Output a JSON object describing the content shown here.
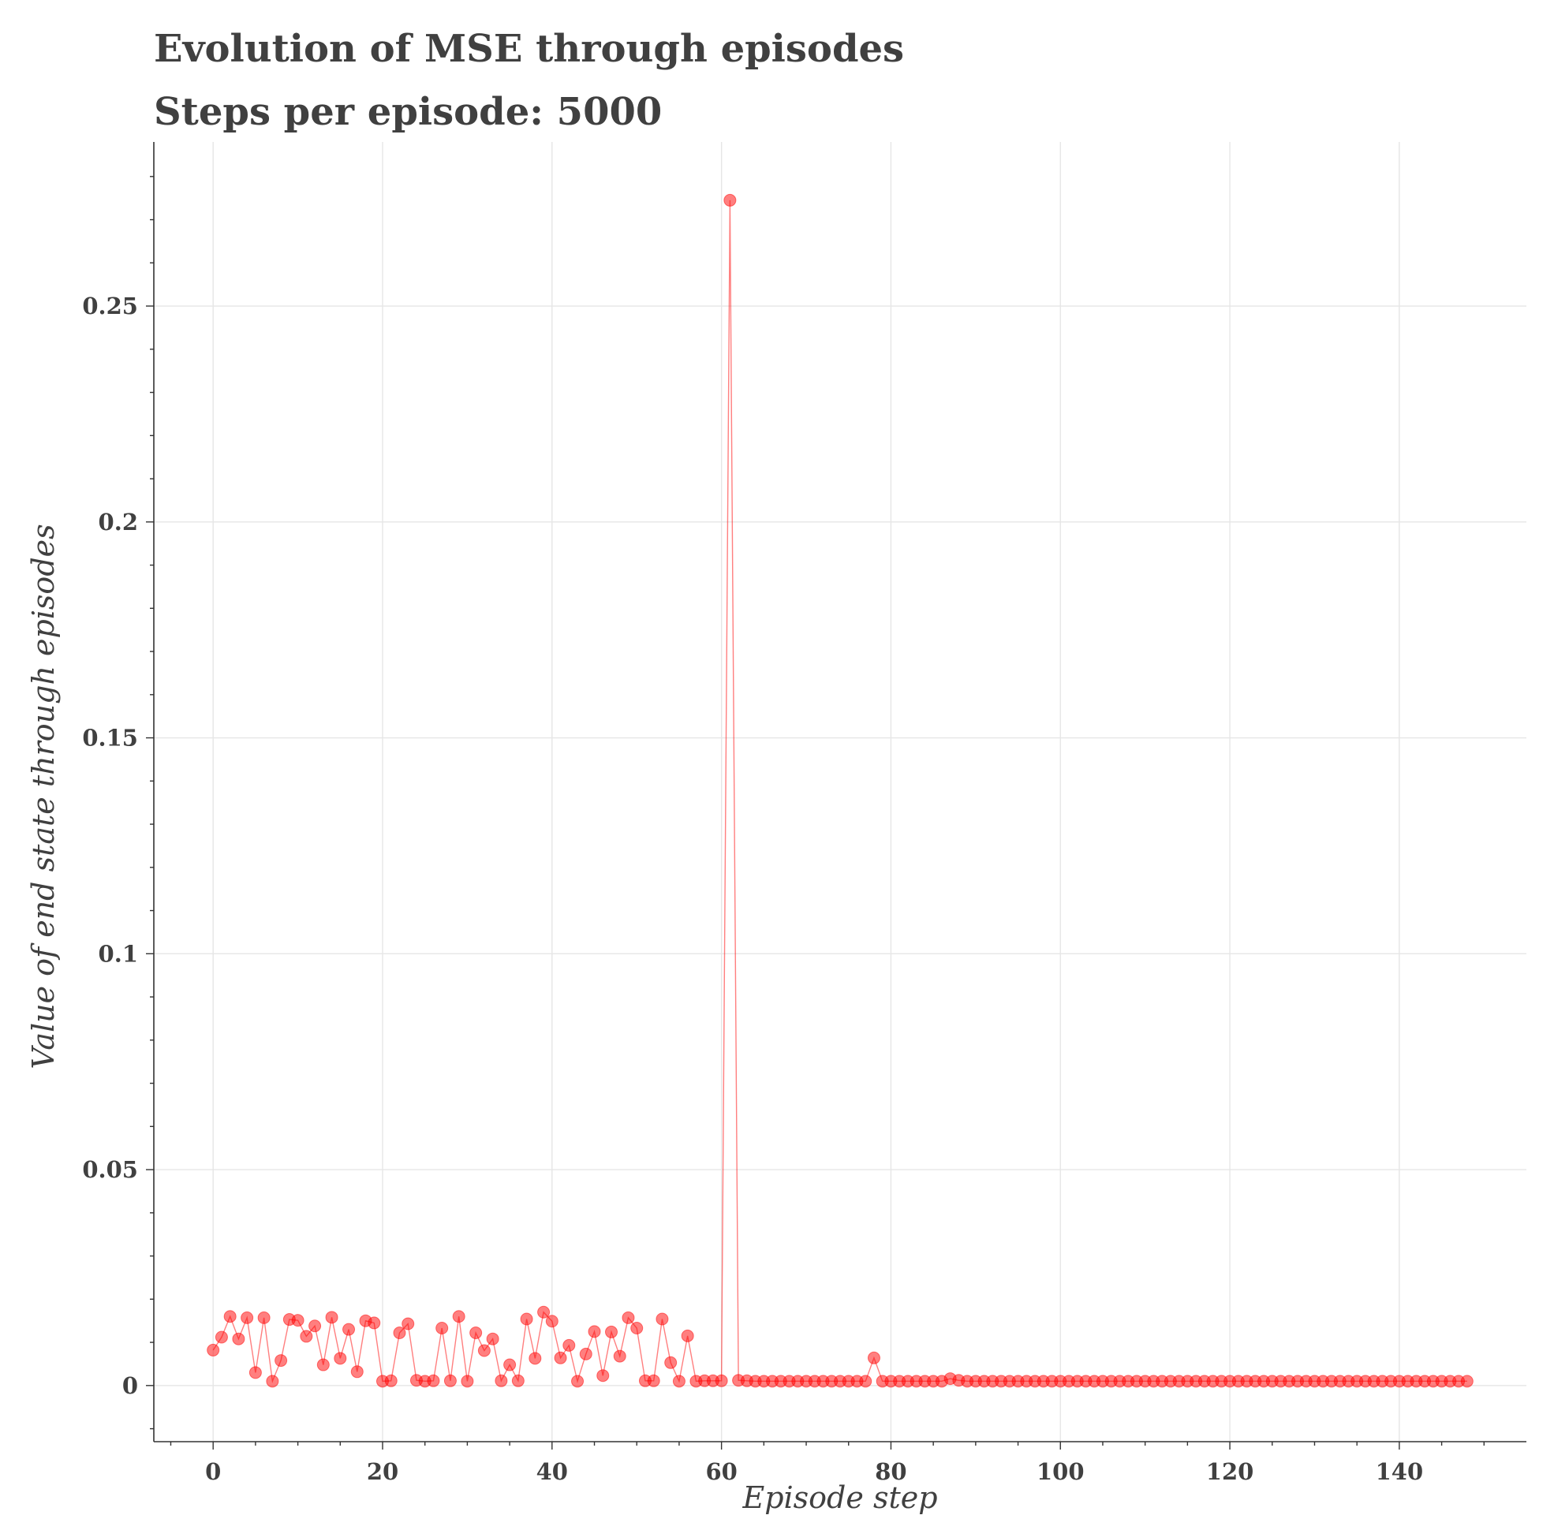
{
  "chart_data": {
    "type": "line",
    "title": "Evolution of MSE through episodes",
    "subtitle": "Steps per episode: 5000",
    "xlabel": "Episode step",
    "ylabel": "Value of end state through episodes",
    "xlim": [
      -7,
      155
    ],
    "ylim": [
      -0.013,
      0.288
    ],
    "xticks": [
      0,
      20,
      40,
      60,
      80,
      100,
      120,
      140
    ],
    "xtick_labels": [
      "0",
      "20",
      "40",
      "60",
      "80",
      "100",
      "120",
      "140"
    ],
    "yticks": [
      0,
      0.05,
      0.1,
      0.15,
      0.2,
      0.25
    ],
    "ytick_labels": [
      "0",
      "0.05",
      "0.1",
      "0.15",
      "0.2",
      "0.25"
    ],
    "grid": true,
    "series": [
      {
        "color": "#ff0000",
        "marker": "circle",
        "alpha": 0.5,
        "values": [
          0.0082,
          0.0112,
          0.016,
          0.0108,
          0.0157,
          0.003,
          0.0157,
          0.001,
          0.0058,
          0.0153,
          0.0151,
          0.0114,
          0.0138,
          0.0048,
          0.0158,
          0.0063,
          0.013,
          0.0032,
          0.015,
          0.0145,
          0.001,
          0.0011,
          0.0122,
          0.0143,
          0.0012,
          0.001,
          0.0011,
          0.0133,
          0.0011,
          0.016,
          0.001,
          0.0122,
          0.0081,
          0.0108,
          0.0011,
          0.0048,
          0.0011,
          0.0154,
          0.0063,
          0.017,
          0.0149,
          0.0064,
          0.0093,
          0.001,
          0.0073,
          0.0125,
          0.0023,
          0.0124,
          0.0068,
          0.0157,
          0.0133,
          0.0011,
          0.0011,
          0.0154,
          0.0053,
          0.001,
          0.0115,
          0.001,
          0.0011,
          0.0011,
          0.0011,
          0.2745,
          0.0012,
          0.0011,
          0.001,
          0.001,
          0.001,
          0.001,
          0.001,
          0.001,
          0.001,
          0.001,
          0.001,
          0.001,
          0.001,
          0.001,
          0.001,
          0.001,
          0.0064,
          0.001,
          0.001,
          0.001,
          0.001,
          0.001,
          0.001,
          0.001,
          0.001,
          0.0016,
          0.0012,
          0.001,
          0.001,
          0.001,
          0.001,
          0.001,
          0.001,
          0.001,
          0.001,
          0.001,
          0.001,
          0.001,
          0.001,
          0.001,
          0.001,
          0.001,
          0.001,
          0.001,
          0.001,
          0.001,
          0.001,
          0.001,
          0.001,
          0.001,
          0.001,
          0.001,
          0.001,
          0.001,
          0.001,
          0.001,
          0.001,
          0.001,
          0.001,
          0.001,
          0.001,
          0.001,
          0.001,
          0.001,
          0.001,
          0.001,
          0.001,
          0.001,
          0.001,
          0.001,
          0.001,
          0.001,
          0.001,
          0.001,
          0.001,
          0.001,
          0.001,
          0.001,
          0.001,
          0.001,
          0.001,
          0.001,
          0.001,
          0.001,
          0.001,
          0.001,
          0.001
        ]
      }
    ]
  }
}
